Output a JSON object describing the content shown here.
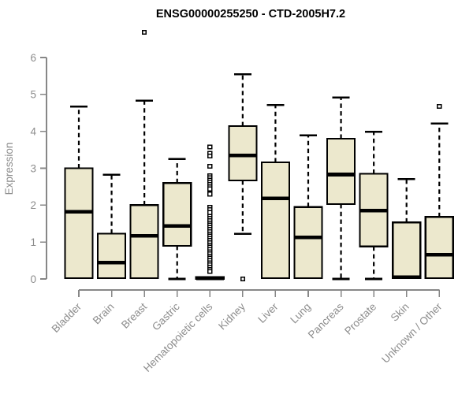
{
  "page": {
    "background": "#ffffff"
  },
  "chart_data": {
    "type": "boxplot",
    "title": "ENSG00000255250 - CTD-2005H7.2",
    "ylabel": "Expression",
    "xlabel": "",
    "ylim": [
      0,
      6
    ],
    "yticks": [
      0,
      1,
      2,
      3,
      4,
      5,
      6
    ],
    "grid": false,
    "legend": "none",
    "colors": {
      "box_fill": "#ece8cd",
      "box_stroke": "#000000",
      "median": "#000000",
      "whisker": "#000000",
      "outlier_stroke": "#000000",
      "axis": "#878787",
      "tick_text": "#8c8c8c",
      "title_text": "#000000",
      "background": "#ffffff"
    },
    "categories": [
      "Bladder",
      "Brain",
      "Breast",
      "Gastric",
      "Hematopoietic cells",
      "Kidney",
      "Liver",
      "Lung",
      "Pancreas",
      "Prostate",
      "Skin",
      "Unknown / Other"
    ],
    "boxes": [
      {
        "category": "Bladder",
        "whisker_low": null,
        "q1": 0.02,
        "median": 1.82,
        "q3": 3.0,
        "whisker_high": 4.67,
        "outliers": []
      },
      {
        "category": "Brain",
        "whisker_low": null,
        "q1": 0.02,
        "median": 0.44,
        "q3": 1.23,
        "whisker_high": 2.82,
        "outliers": []
      },
      {
        "category": "Breast",
        "whisker_low": null,
        "q1": 0.02,
        "median": 1.17,
        "q3": 2.0,
        "whisker_high": 4.83,
        "outliers": [
          6.68
        ]
      },
      {
        "category": "Gastric",
        "whisker_low": 0.0,
        "q1": 0.9,
        "median": 1.44,
        "q3": 2.6,
        "whisker_high": 3.25,
        "outliers": []
      },
      {
        "category": "Hematopoietic cells",
        "whisker_low": null,
        "q1": 0.0,
        "median": 0.02,
        "q3": 0.05,
        "whisker_high": null,
        "outliers": [
          3.58,
          3.4,
          3.33,
          3.05,
          2.8,
          2.74,
          2.68,
          2.62,
          2.56,
          2.5,
          2.44,
          2.3,
          1.94,
          1.88,
          1.8,
          1.7,
          1.64,
          1.58,
          1.52,
          1.46,
          1.4,
          1.34,
          1.28,
          1.22,
          1.16,
          1.1,
          1.04,
          0.98,
          0.92,
          0.86,
          0.8,
          0.74,
          0.68,
          0.62,
          0.56,
          0.5,
          0.44,
          0.38,
          0.32,
          0.26,
          0.2
        ]
      },
      {
        "category": "Kidney",
        "whisker_low": 1.22,
        "q1": 2.67,
        "median": 3.35,
        "q3": 4.14,
        "whisker_high": 5.55,
        "outliers": [
          0.0
        ]
      },
      {
        "category": "Liver",
        "whisker_low": null,
        "q1": 0.02,
        "median": 2.18,
        "q3": 3.16,
        "whisker_high": 4.71,
        "outliers": []
      },
      {
        "category": "Lung",
        "whisker_low": null,
        "q1": 0.02,
        "median": 1.13,
        "q3": 1.95,
        "whisker_high": 3.89,
        "outliers": []
      },
      {
        "category": "Pancreas",
        "whisker_low": 0.0,
        "q1": 2.03,
        "median": 2.83,
        "q3": 3.8,
        "whisker_high": 4.92,
        "outliers": []
      },
      {
        "category": "Prostate",
        "whisker_low": 0.0,
        "q1": 0.88,
        "median": 1.85,
        "q3": 2.85,
        "whisker_high": 3.99,
        "outliers": []
      },
      {
        "category": "Skin",
        "whisker_low": null,
        "q1": 0.02,
        "median": 0.05,
        "q3": 1.53,
        "whisker_high": 2.71,
        "outliers": []
      },
      {
        "category": "Unknown / Other",
        "whisker_low": null,
        "q1": 0.02,
        "median": 0.66,
        "q3": 1.68,
        "whisker_high": 4.21,
        "outliers": [
          4.68
        ]
      }
    ]
  }
}
